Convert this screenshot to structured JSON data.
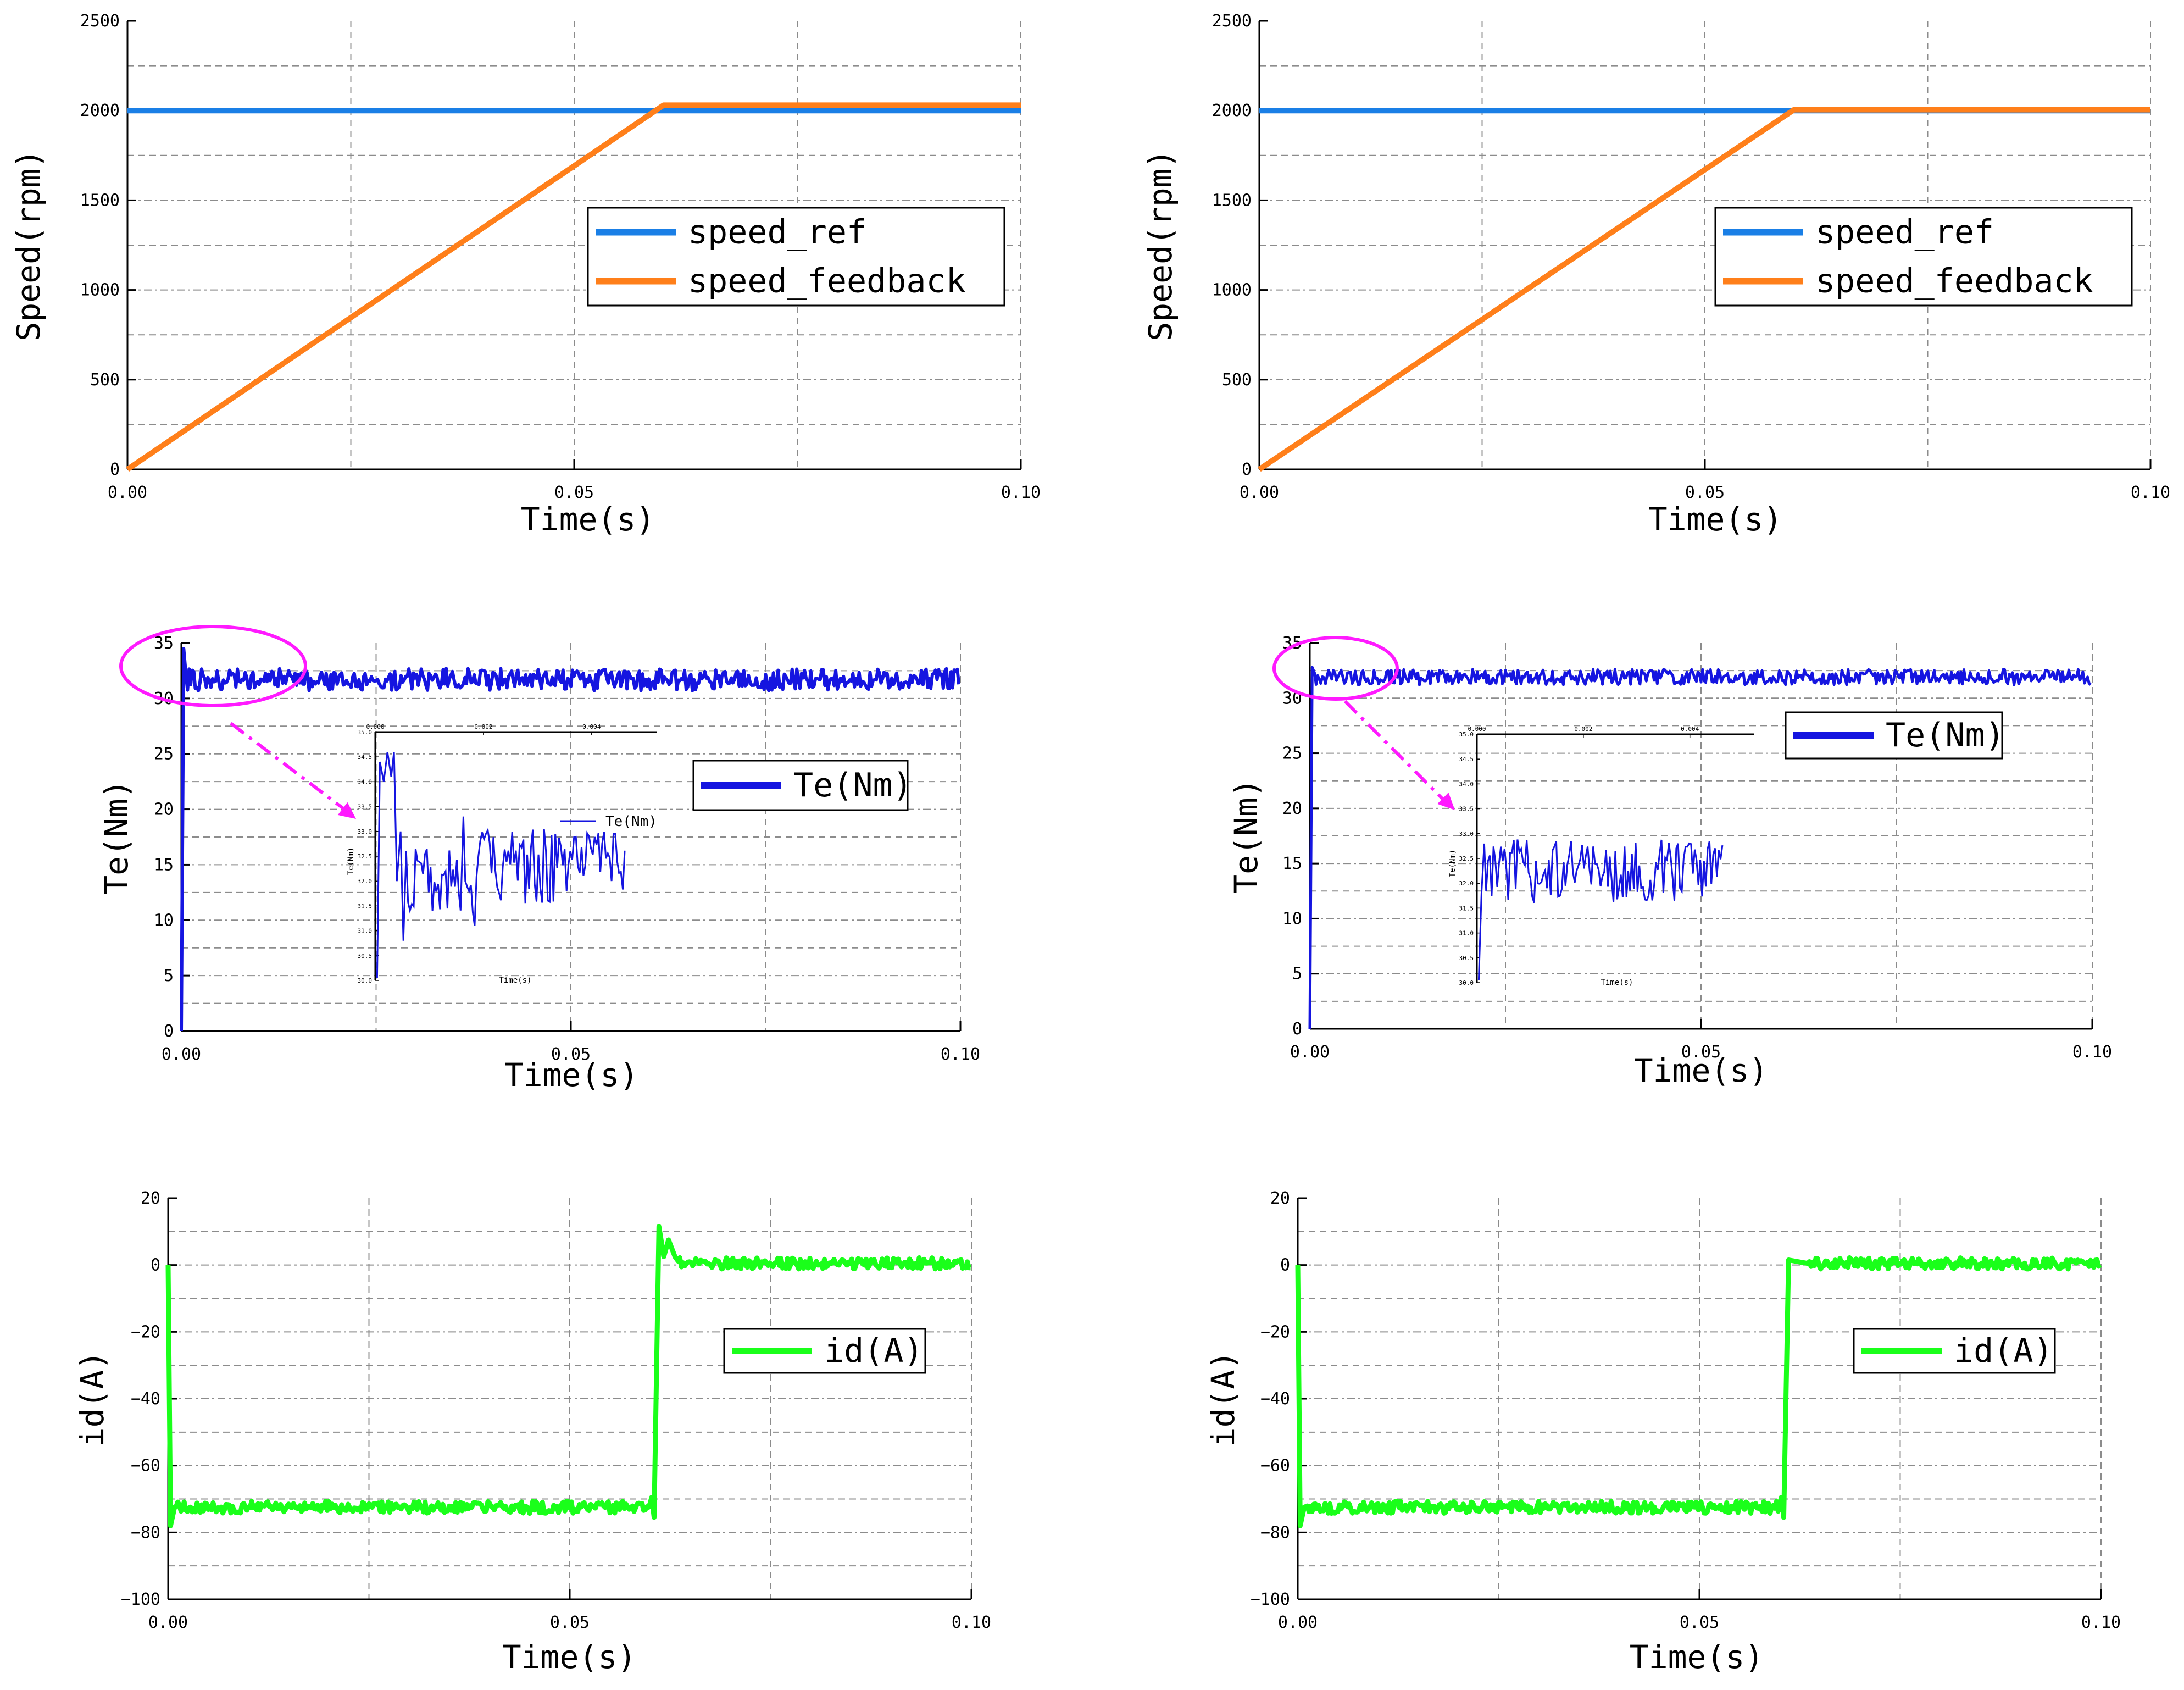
{
  "figure": {
    "background": "#ffffff",
    "grid_color": "#8c8c8c",
    "axis_color": "#000000"
  },
  "chart_data": [
    {
      "id": "speed-left",
      "type": "line",
      "xlabel": "Time(s)",
      "ylabel": "Speed(rpm)",
      "xlim": [
        0,
        0.1
      ],
      "ylim": [
        0,
        2500
      ],
      "xticks": [
        0,
        0.05,
        0.1
      ],
      "xtick_labels": [
        "0.00",
        "0.05",
        "0.10"
      ],
      "yticks": [
        0,
        500,
        1000,
        1500,
        2000,
        2500
      ],
      "ytick_labels": [
        "0",
        "500",
        "1000",
        "1500",
        "2000",
        "2500"
      ],
      "grid": true,
      "legend_position": "center-right",
      "series": [
        {
          "name": "speed_ref",
          "color": "#1a7fe6",
          "style": "flat",
          "x": [
            0,
            0.1
          ],
          "y": [
            2000,
            2000
          ]
        },
        {
          "name": "speed_feedback",
          "color": "#ff7f1a",
          "style": "ramp",
          "x": [
            0,
            0.06,
            0.1
          ],
          "y": [
            0,
            2030,
            2030
          ]
        }
      ]
    },
    {
      "id": "speed-right",
      "type": "line",
      "xlabel": "Time(s)",
      "ylabel": "Speed(rpm)",
      "xlim": [
        0,
        0.1
      ],
      "ylim": [
        0,
        2500
      ],
      "xticks": [
        0,
        0.05,
        0.1
      ],
      "xtick_labels": [
        "0.00",
        "0.05",
        "0.10"
      ],
      "yticks": [
        0,
        500,
        1000,
        1500,
        2000,
        2500
      ],
      "ytick_labels": [
        "0",
        "500",
        "1000",
        "1500",
        "2000",
        "2500"
      ],
      "grid": true,
      "legend_position": "center-right",
      "series": [
        {
          "name": "speed_ref",
          "color": "#1a7fe6",
          "style": "flat",
          "x": [
            0,
            0.1
          ],
          "y": [
            2000,
            2000
          ]
        },
        {
          "name": "speed_feedback",
          "color": "#ff7f1a",
          "style": "ramp",
          "x": [
            0,
            0.06,
            0.1
          ],
          "y": [
            0,
            2005,
            2005
          ]
        }
      ]
    },
    {
      "id": "torque-left",
      "type": "line",
      "xlabel": "Time(s)",
      "ylabel": "Te(Nm)",
      "xlim": [
        0,
        0.1
      ],
      "ylim": [
        0,
        35
      ],
      "xticks": [
        0,
        0.05,
        0.1
      ],
      "xtick_labels": [
        "0.00",
        "0.05",
        "0.10"
      ],
      "yticks": [
        0,
        5,
        10,
        15,
        20,
        25,
        30,
        35
      ],
      "ytick_labels": [
        "0",
        "5",
        "10",
        "15",
        "20",
        "25",
        "30",
        "35"
      ],
      "grid": true,
      "legend_position": "upper-right",
      "series": [
        {
          "name": "Te(Nm)",
          "color": "#1515e0",
          "style": "torque",
          "steady": 31.7,
          "ripple": 1.0,
          "peak": 34.5
        }
      ],
      "highlight_color": "#ff1aff",
      "inset": {
        "xlim": [
          0,
          0.006
        ],
        "ylim": [
          30.0,
          35.0
        ],
        "xtick_labels": [
          "0.000",
          "0.002",
          "0.004"
        ],
        "ytick_labels": [
          "30.0",
          "30.5",
          "31.0",
          "31.5",
          "32.0",
          "32.5",
          "33.0",
          "33.5",
          "34.0",
          "34.5",
          "35.0"
        ],
        "xlabel": "Time(s)",
        "ylabel": "Te(Nm)",
        "legend": "Te(Nm)",
        "variant": "overshoot"
      }
    },
    {
      "id": "torque-right",
      "type": "line",
      "xlabel": "Time(s)",
      "ylabel": "Te(Nm)",
      "xlim": [
        0,
        0.1
      ],
      "ylim": [
        0,
        35
      ],
      "xticks": [
        0,
        0.05,
        0.1
      ],
      "xtick_labels": [
        "0.00",
        "0.05",
        "0.10"
      ],
      "yticks": [
        0,
        5,
        10,
        15,
        20,
        25,
        30,
        35
      ],
      "ytick_labels": [
        "0",
        "5",
        "10",
        "15",
        "20",
        "25",
        "30",
        "35"
      ],
      "grid": true,
      "legend_position": "upper-right",
      "series": [
        {
          "name": "Te(Nm)",
          "color": "#1515e0",
          "style": "torque",
          "steady": 31.9,
          "ripple": 0.7,
          "peak": 32.8
        }
      ],
      "highlight_color": "#ff1aff",
      "inset": {
        "xlim": [
          0,
          0.006
        ],
        "ylim": [
          30.0,
          35.0
        ],
        "xtick_labels": [
          "0.000",
          "0.002",
          "0.004"
        ],
        "ytick_labels": [
          "30.0",
          "30.5",
          "31.0",
          "31.5",
          "32.0",
          "32.5",
          "33.0",
          "33.5",
          "34.0",
          "34.5",
          "35.0"
        ],
        "xlabel": "Time(s)",
        "ylabel": "Te(Nm)",
        "legend": "",
        "variant": "smooth"
      }
    },
    {
      "id": "id-left",
      "type": "line",
      "xlabel": "Time(s)",
      "ylabel": "id(A)",
      "xlim": [
        0,
        0.1
      ],
      "ylim": [
        -100,
        20
      ],
      "xticks": [
        0,
        0.05,
        0.1
      ],
      "xtick_labels": [
        "0.00",
        "0.05",
        "0.10"
      ],
      "yticks": [
        -100,
        -80,
        -60,
        -40,
        -20,
        0,
        20
      ],
      "ytick_labels": [
        "−100",
        "−80",
        "−60",
        "−40",
        "−20",
        "0",
        "20"
      ],
      "grid": true,
      "legend_position": "center-right",
      "series": [
        {
          "name": "id(A)",
          "color": "#1aff1a",
          "style": "current",
          "low": -72.5,
          "high": 0.5,
          "switch": 0.0605,
          "overshoot": 11
        }
      ]
    },
    {
      "id": "id-right",
      "type": "line",
      "xlabel": "Time(s)",
      "ylabel": "id(A)",
      "xlim": [
        0,
        0.1
      ],
      "ylim": [
        -100,
        20
      ],
      "xticks": [
        0,
        0.05,
        0.1
      ],
      "xtick_labels": [
        "0.00",
        "0.05",
        "0.10"
      ],
      "yticks": [
        -100,
        -80,
        -60,
        -40,
        -20,
        0,
        20
      ],
      "ytick_labels": [
        "−100",
        "−80",
        "−60",
        "−40",
        "−20",
        "0",
        "20"
      ],
      "grid": true,
      "legend_position": "center-right",
      "series": [
        {
          "name": "id(A)",
          "color": "#1aff1a",
          "style": "current",
          "low": -72.5,
          "high": 0.5,
          "switch": 0.0605,
          "overshoot": 1
        }
      ]
    }
  ]
}
